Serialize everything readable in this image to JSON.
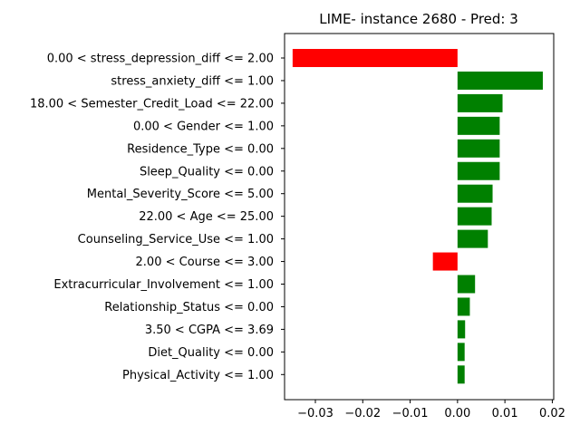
{
  "chart_data": {
    "type": "bar",
    "orientation": "horizontal",
    "title": "LIME- instance 2680 - Pred: 3",
    "xlabel": "",
    "ylabel": "",
    "xlim": [
      -0.0365,
      0.0203
    ],
    "xticks": [
      -0.03,
      -0.02,
      -0.01,
      0.0,
      0.01,
      0.02
    ],
    "xtick_labels": [
      "−0.03",
      "−0.02",
      "−0.01",
      "0.00",
      "0.01",
      "0.02"
    ],
    "grid": false,
    "positive_color": "#008000",
    "negative_color": "#ff0000",
    "categories": [
      "0.00 < stress_depression_diff <= 2.00",
      "stress_anxiety_diff <= 1.00",
      "18.00 < Semester_Credit_Load <= 22.00",
      "0.00 < Gender <= 1.00",
      "Residence_Type <= 0.00",
      "Sleep_Quality <= 0.00",
      "Mental_Severity_Score <= 5.00",
      "22.00 < Age <= 25.00",
      "Counseling_Service_Use <= 1.00",
      "2.00 < Course <= 3.00",
      "Extracurricular_Involvement <= 1.00",
      "Relationship_Status <= 0.00",
      "3.50 < CGPA <= 3.69",
      "Diet_Quality <= 0.00",
      "Physical_Activity <= 1.00"
    ],
    "values": [
      -0.0348,
      0.018,
      0.0095,
      0.0089,
      0.0089,
      0.0089,
      0.0074,
      0.0072,
      0.0064,
      -0.0052,
      0.0037,
      0.0026,
      0.0016,
      0.0015,
      0.0015
    ]
  }
}
